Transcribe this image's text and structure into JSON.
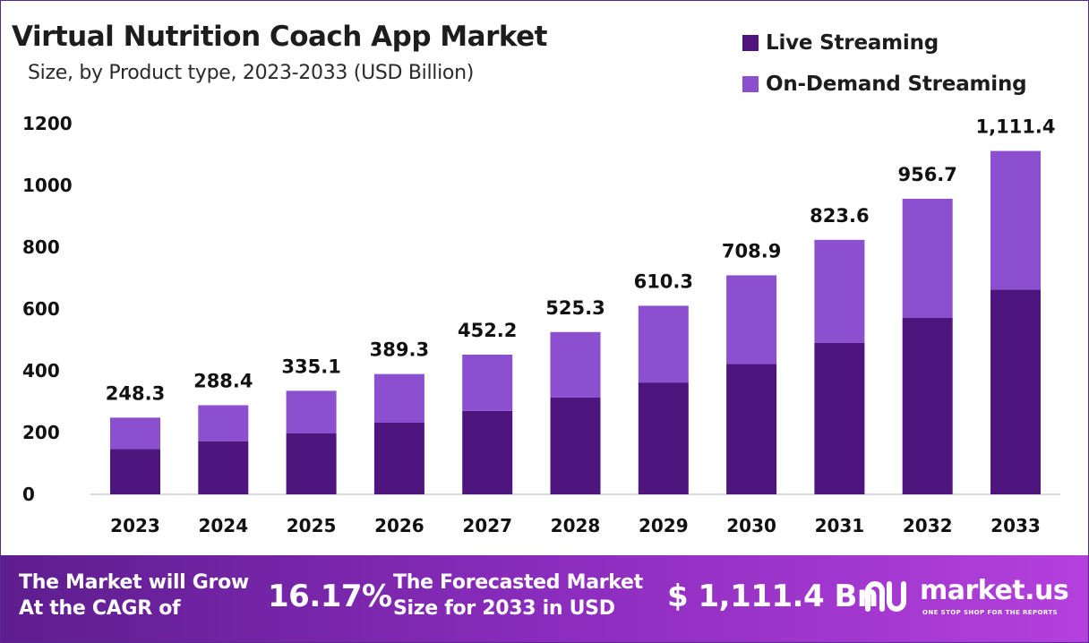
{
  "title": "Virtual Nutrition Coach App Market",
  "subtitle": "Size, by Product type, 2023-2033 (USD Billion)",
  "colors": {
    "live": "#4e157f",
    "on_demand": "#8b4fd0",
    "axis": "#cfcfcf"
  },
  "footer": {
    "cagr_text": [
      "The Market will Grow",
      "At the CAGR of"
    ],
    "cagr_value": "16.17%",
    "forecast_text": [
      "The Forecasted Market",
      "Size for 2033 in USD"
    ],
    "forecast_value": "$ 1,111.4 Bn",
    "brand": "market.us",
    "brand_tagline": "ONE STOP SHOP FOR THE REPORTS"
  },
  "chart_data": {
    "type": "bar",
    "stacked": true,
    "title": "Virtual Nutrition Coach App Market",
    "subtitle": "Size, by Product type, 2023-2033 (USD Billion)",
    "categories": [
      "2023",
      "2024",
      "2025",
      "2026",
      "2027",
      "2028",
      "2029",
      "2030",
      "2031",
      "2032",
      "2033"
    ],
    "series": [
      {
        "name": "Live Streaming",
        "color": "#4e157f",
        "values": [
          147.0,
          172.0,
          198.0,
          232.0,
          270.0,
          313.0,
          362.0,
          422.0,
          490.0,
          572.0,
          663.0
        ]
      },
      {
        "name": "On-Demand Streaming",
        "color": "#8b4fd0",
        "values": [
          101.3,
          116.4,
          137.1,
          157.3,
          182.2,
          212.3,
          248.3,
          286.9,
          333.6,
          384.7,
          448.4
        ]
      }
    ],
    "totals": [
      248.3,
      288.4,
      335.1,
      389.3,
      452.2,
      525.3,
      610.3,
      708.9,
      823.6,
      956.7,
      1111.4
    ],
    "total_labels": [
      "248.3",
      "288.4",
      "335.1",
      "389.3",
      "452.2",
      "525.3",
      "610.3",
      "708.9",
      "823.6",
      "956.7",
      "1,111.4"
    ],
    "yticks": [
      0,
      200,
      400,
      600,
      800,
      1000,
      1200
    ],
    "ylim": [
      0,
      1200
    ],
    "grid": false,
    "legend": "top-right"
  }
}
